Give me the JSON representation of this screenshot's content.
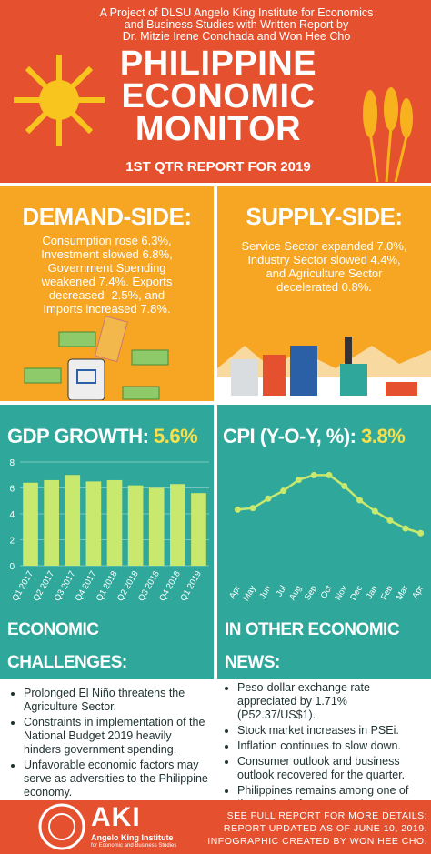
{
  "header": {
    "project_lines": [
      "A Project of DLSU Angelo King Institute for Economics",
      "and Business Studies with Written Report by",
      "Dr. Mitzie Irene Conchada and Won Hee Cho"
    ],
    "title_lines": [
      "PHILIPPINE",
      "ECONOMIC",
      "MONITOR"
    ],
    "subtitle": "1ST QTR REPORT FOR 2019"
  },
  "demand": {
    "title": "DEMAND-SIDE:",
    "lines": [
      "Consumption rose 6.3%,",
      "Investment slowed 6.8%,",
      "Government Spending",
      "weakened 7.4%. Exports",
      "decreased -2.5%, and",
      "Imports increased 7.8%."
    ]
  },
  "supply": {
    "title": "SUPPLY-SIDE:",
    "lines": [
      "Service Sector expanded 7.0%,",
      "Industry Sector slowed 4.4%,",
      "and Agriculture Sector",
      "decelerated 0.8%."
    ]
  },
  "chart_data": [
    {
      "type": "bar",
      "title": "GDP GROWTH:",
      "highlight": "5.6%",
      "categories": [
        "Q1 2017",
        "Q2 2017",
        "Q3 2017",
        "Q4 2017",
        "Q1 2018",
        "Q2 2018",
        "Q3 2018",
        "Q4 2018",
        "Q1 2019"
      ],
      "values": [
        6.4,
        6.6,
        7.0,
        6.5,
        6.6,
        6.2,
        6.0,
        6.3,
        5.6
      ],
      "color": "#c8e86e",
      "ylim": [
        0,
        8
      ],
      "yticks": [
        0,
        2,
        4,
        6,
        8
      ],
      "grid": true
    },
    {
      "type": "line",
      "title": "CPI (Y-O-Y, %):",
      "highlight": "3.8%",
      "categories": [
        "Apr",
        "May",
        "Jun",
        "Jul",
        "Aug",
        "Sep",
        "Oct",
        "Nov",
        "Dec",
        "Jan",
        "Feb",
        "Mar",
        "Apr"
      ],
      "values": [
        4.5,
        4.6,
        5.2,
        5.7,
        6.4,
        6.7,
        6.7,
        6.0,
        5.1,
        4.4,
        3.8,
        3.3,
        3.0
      ],
      "color": "#c8e86e",
      "ylim": [
        0,
        8
      ]
    }
  ],
  "challenges": {
    "title": "ECONOMIC CHALLENGES:",
    "items": [
      "Prolonged El Niño threatens the Agriculture Sector.",
      "Constraints in implementation of the National Budget 2019 heavily hinders government spending.",
      "Unfavorable economic factors may serve as adversities to the Philippine economy."
    ]
  },
  "news": {
    "title": "IN OTHER ECONOMIC NEWS:",
    "items": [
      "Peso-dollar exchange rate appreciated by 1.71% (P52.37/US$1).",
      "Stock market increases in PSEi.",
      "Inflation continues to slow down.",
      "Consumer outlook and business outlook recovered for the quarter.",
      "Philippines remains among one of the region's fastest-growing economies."
    ]
  },
  "footer": {
    "logo": "AKI",
    "institute": "Angelo King Institute",
    "institute_sub": "for Economic and Business Studies",
    "lines": [
      "SEE FULL REPORT FOR MORE DETAILS:",
      "REPORT UPDATED AS OF JUNE 10, 2019.",
      "INFOGRAPHIC CREATED BY WON HEE CHO."
    ]
  }
}
